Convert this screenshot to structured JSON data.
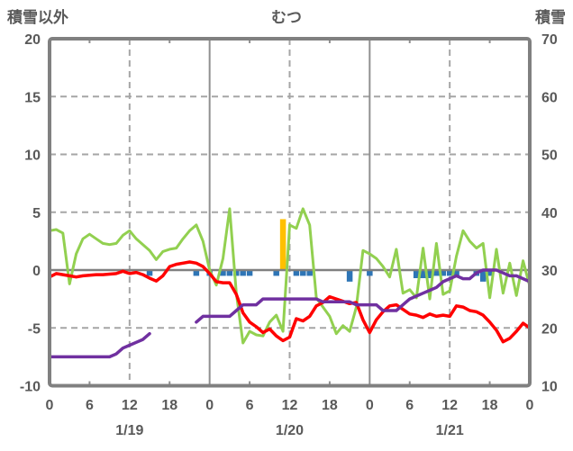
{
  "chart_data": {
    "type": "line",
    "title": "むつ",
    "left_axis": {
      "label": "積雪以外",
      "min": -10,
      "max": 20,
      "ticks": [
        20,
        15,
        10,
        5,
        0,
        -5,
        -10
      ],
      "gridline_ticks": [
        15,
        10,
        5,
        -5
      ],
      "zero_line": 0
    },
    "right_axis": {
      "label": "積雪",
      "min": 10,
      "max": 70,
      "ticks": [
        70,
        60,
        50,
        40,
        30,
        20,
        10
      ]
    },
    "x_axis": {
      "hours_total": 72,
      "tick_every": 6,
      "tick_labels": [
        "0",
        "6",
        "12",
        "18",
        "0",
        "6",
        "12",
        "18",
        "0",
        "6",
        "12",
        "18",
        "0"
      ],
      "dashed_gridline_hours": [
        12,
        36,
        60
      ],
      "solid_gridline_hours": [
        24,
        48
      ],
      "day_labels": [
        {
          "label": "1/19",
          "hour": 12
        },
        {
          "label": "1/20",
          "hour": 36
        },
        {
          "label": "1/21",
          "hour": 60
        }
      ]
    },
    "series": [
      {
        "name": "series-green",
        "axis": "left",
        "color": "#92D050",
        "width": 3,
        "segments": [
          {
            "start": 0,
            "values": [
              3.4,
              3.5,
              3.2,
              -1.2,
              1.4,
              2.7,
              3.1,
              2.7,
              2.3,
              2.2,
              2.3,
              3.0,
              3.4,
              2.7,
              2.2,
              1.7,
              0.9,
              1.6,
              1.8,
              1.9,
              2.7,
              3.4,
              3.9,
              2.5,
              0.0,
              -1.3,
              1.0,
              5.3,
              -2.0,
              -6.3,
              -5.3,
              -5.6,
              -5.7,
              -4.5,
              -3.9,
              -5.3,
              3.9,
              3.6,
              5.3,
              3.9,
              -2.4,
              -3.2,
              -4.0,
              -5.5,
              -4.8,
              -5.3,
              -3.2,
              1.7,
              1.4,
              1.0,
              0.3,
              -0.6,
              1.8,
              -2.0,
              -1.7,
              -2.4,
              1.9,
              -2.5,
              2.3,
              -2.1,
              -1.8,
              1.2,
              3.4,
              2.5,
              1.9,
              2.3,
              -2.4,
              1.8,
              -2.0,
              0.6,
              -2.2,
              0.8,
              -1.4
            ]
          }
        ]
      },
      {
        "name": "series-red",
        "axis": "left",
        "color": "#FF0000",
        "width": 3.5,
        "segments": [
          {
            "start": 0,
            "values": [
              -0.6,
              -0.3,
              -0.4,
              -0.5,
              -0.6,
              -0.5,
              -0.45,
              -0.4,
              -0.4,
              -0.35,
              -0.3,
              -0.1,
              -0.3,
              -0.2,
              -0.4,
              -0.7,
              -0.95,
              -0.5,
              0.3,
              0.5,
              0.6,
              0.7,
              0.6,
              0.3,
              -0.3,
              -1.0,
              -1.1,
              -1.1,
              -2.1,
              -3.7,
              -4.5,
              -4.9,
              -5.4,
              -5.1,
              -5.7,
              -6.1,
              -5.8,
              -4.2,
              -4.4,
              -4.0,
              -3.1,
              -2.8,
              -2.3,
              -2.5,
              -2.7,
              -2.9,
              -2.8,
              -4.3,
              -5.4,
              -4.3,
              -3.6,
              -3.1,
              -3.0,
              -3.4,
              -3.8,
              -3.9,
              -4.1,
              -3.8,
              -4.0,
              -3.9,
              -4.0,
              -3.1,
              -3.2,
              -3.5,
              -3.6,
              -3.9,
              -4.5,
              -5.2,
              -6.2,
              -5.9,
              -5.3,
              -4.6,
              -5.0
            ]
          }
        ]
      },
      {
        "name": "series-purple-snow-depth",
        "axis": "right",
        "color": "#7030A0",
        "width": 3.5,
        "segments": [
          {
            "start": 0,
            "values": [
              15,
              15,
              15,
              15,
              15,
              15,
              15,
              15,
              15,
              15,
              15.5,
              16.5,
              17,
              17.5,
              18,
              19
            ]
          },
          {
            "start": 22,
            "values": [
              21,
              22,
              22,
              22,
              22,
              22,
              23,
              24,
              24,
              24,
              25,
              25,
              25,
              25,
              25,
              25,
              25,
              25,
              25,
              24.5,
              24.5,
              24.5,
              24.5,
              24.5,
              24,
              24,
              24,
              24,
              23,
              23,
              23,
              24,
              25,
              25.5,
              26,
              26.5,
              27,
              28,
              28.5,
              29,
              28.5,
              28.5,
              29.5,
              30,
              30,
              30,
              29.5,
              29,
              29,
              28.5,
              28
            ]
          }
        ]
      }
    ],
    "bars": [
      {
        "name": "bars-blue",
        "axis": "left",
        "direction": "down",
        "color": "#2E75B6",
        "items": [
          {
            "hour": 15,
            "value": 0.5
          },
          {
            "hour": 22,
            "value": 0.5
          },
          {
            "hour": 24,
            "value": 0.5
          },
          {
            "hour": 26,
            "value": 0.5
          },
          {
            "hour": 27,
            "value": 0.5
          },
          {
            "hour": 28,
            "value": 0.5
          },
          {
            "hour": 29,
            "value": 0.5
          },
          {
            "hour": 30,
            "value": 0.5
          },
          {
            "hour": 34,
            "value": 0.5
          },
          {
            "hour": 37,
            "value": 0.5
          },
          {
            "hour": 38,
            "value": 0.5
          },
          {
            "hour": 39,
            "value": 0.5
          },
          {
            "hour": 45,
            "value": 1.0
          },
          {
            "hour": 48,
            "value": 0.5
          },
          {
            "hour": 55,
            "value": 0.7
          },
          {
            "hour": 56,
            "value": 0.7
          },
          {
            "hour": 57,
            "value": 0.7
          },
          {
            "hour": 58,
            "value": 0.5
          },
          {
            "hour": 59,
            "value": 0.5
          },
          {
            "hour": 60,
            "value": 0.5
          },
          {
            "hour": 61,
            "value": 0.5
          },
          {
            "hour": 64,
            "value": 0.5
          },
          {
            "hour": 65,
            "value": 1.0
          },
          {
            "hour": 66,
            "value": 0.5
          }
        ]
      },
      {
        "name": "bars-orange",
        "axis": "left",
        "direction": "up",
        "color": "#FFC000",
        "items": [
          {
            "hour": 35,
            "value": 4.4
          }
        ]
      }
    ],
    "style": {
      "border_color": "#808080",
      "zero_line_color": "#808080",
      "solid_grid_color": "#909090",
      "dashed_grid_color": "#A6A6A6",
      "text_color": "#595959",
      "background": "#FFFFFF"
    }
  }
}
